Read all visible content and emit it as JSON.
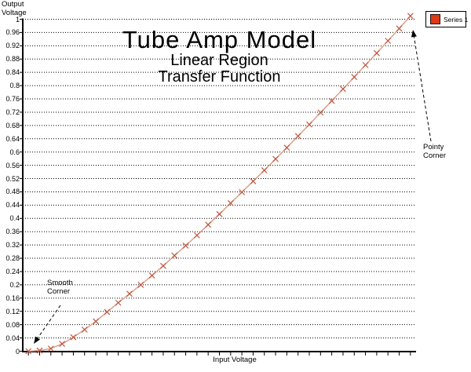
{
  "chart_data": {
    "type": "line",
    "title": "Tube Amp Model",
    "subtitle1": "Linear Region",
    "subtitle2": "Transfer Function",
    "xlabel": "Input Voltage",
    "ylabel": "Output\nVoltage",
    "ylim": [
      0,
      1
    ],
    "y_tick_interval": 0.04,
    "y_tick_labels_top_to_bottom": [
      "1",
      "0.96",
      "0.92",
      "0.88",
      "0.84",
      "0.8",
      "0.76",
      "0.72",
      "0.68",
      "0.64",
      "0.6",
      "0.56",
      "0.52",
      "0.48",
      "0.44",
      "0.4",
      "0.36",
      "0.32",
      "0.28",
      "0.24",
      "0.2",
      "0.16",
      "0.12",
      "0.08",
      "0.04",
      "0"
    ],
    "x_tick_labels": [],
    "grid": "horizontal-dotted",
    "legend_position": "top-right",
    "num_points": 35,
    "series": [
      {
        "name": "Series 1",
        "marker": "x",
        "line_color": "#dba189",
        "marker_color": "#bf5640",
        "values": [
          0.0,
          0.002,
          0.008,
          0.022,
          0.042,
          0.065,
          0.09,
          0.118,
          0.146,
          0.173,
          0.2,
          0.228,
          0.257,
          0.288,
          0.318,
          0.349,
          0.381,
          0.413,
          0.446,
          0.479,
          0.512,
          0.545,
          0.579,
          0.613,
          0.648,
          0.683,
          0.719,
          0.754,
          0.79,
          0.826,
          0.862,
          0.898,
          0.935,
          0.972,
          1.01
        ]
      }
    ]
  },
  "legend": {
    "label": "Series 1",
    "swatch_color": "#df3a16"
  },
  "annotations": {
    "smooth": {
      "text": "Smooth\nCorner",
      "points_to": "first data point"
    },
    "pointy": {
      "text": "Pointy\nCorner",
      "points_to": "last data point"
    }
  }
}
